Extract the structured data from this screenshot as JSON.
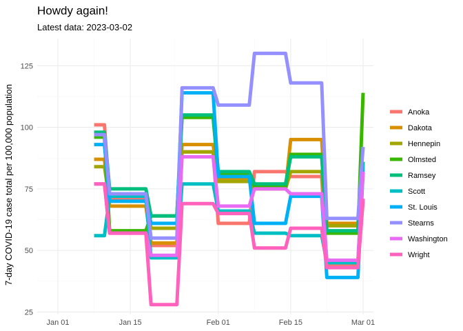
{
  "chart_data": {
    "type": "line",
    "title": "Howdy again!",
    "subtitle": "Latest data: 2023-03-02",
    "xlabel": "",
    "ylabel": "7-day COVID-19 case total per 100,000 population",
    "x_ticks": [
      "2023-01-01",
      "2023-01-15",
      "2023-02-01",
      "2023-02-15",
      "2023-03-01"
    ],
    "x_tick_labels": [
      "Jan 01",
      "Jan 15",
      "Feb 01",
      "Feb 15",
      "Mar 01"
    ],
    "y_ticks": [
      25,
      50,
      75,
      100,
      125
    ],
    "xlim": [
      "2022-12-28",
      "2023-03-03"
    ],
    "ylim": [
      24,
      136
    ],
    "grid": true,
    "legend": "right",
    "series": [
      {
        "name": "Anoka",
        "color": "#F8766D",
        "points": [
          [
            "2023-01-08",
            101
          ],
          [
            "2023-01-10",
            101
          ],
          [
            "2023-01-11",
            71
          ],
          [
            "2023-01-14",
            71
          ],
          [
            "2023-01-18",
            71
          ],
          [
            "2023-01-19",
            52
          ],
          [
            "2023-01-24",
            52
          ],
          [
            "2023-01-25",
            90
          ],
          [
            "2023-01-31",
            90
          ],
          [
            "2023-02-01",
            61
          ],
          [
            "2023-02-07",
            61
          ],
          [
            "2023-02-08",
            82
          ],
          [
            "2023-02-14",
            82
          ],
          [
            "2023-02-15",
            80
          ],
          [
            "2023-02-21",
            80
          ],
          [
            "2023-02-22",
            44
          ],
          [
            "2023-02-28",
            44
          ],
          [
            "2023-03-01",
            70
          ]
        ]
      },
      {
        "name": "Dakota",
        "color": "#D89000",
        "points": [
          [
            "2023-01-08",
            87
          ],
          [
            "2023-01-10",
            87
          ],
          [
            "2023-01-11",
            68
          ],
          [
            "2023-01-14",
            68
          ],
          [
            "2023-01-18",
            68
          ],
          [
            "2023-01-19",
            53
          ],
          [
            "2023-01-24",
            53
          ],
          [
            "2023-01-25",
            93
          ],
          [
            "2023-01-31",
            93
          ],
          [
            "2023-02-01",
            79
          ],
          [
            "2023-02-07",
            79
          ],
          [
            "2023-02-08",
            75
          ],
          [
            "2023-02-14",
            75
          ],
          [
            "2023-02-15",
            95
          ],
          [
            "2023-02-21",
            95
          ],
          [
            "2023-02-22",
            61
          ],
          [
            "2023-02-28",
            61
          ],
          [
            "2023-03-01",
            83
          ]
        ]
      },
      {
        "name": "Hennepin",
        "color": "#A3A500",
        "points": [
          [
            "2023-01-08",
            84
          ],
          [
            "2023-01-10",
            84
          ],
          [
            "2023-01-11",
            70
          ],
          [
            "2023-01-14",
            70
          ],
          [
            "2023-01-18",
            70
          ],
          [
            "2023-01-19",
            59
          ],
          [
            "2023-01-24",
            59
          ],
          [
            "2023-01-25",
            90
          ],
          [
            "2023-01-31",
            90
          ],
          [
            "2023-02-01",
            78
          ],
          [
            "2023-02-07",
            78
          ],
          [
            "2023-02-08",
            75
          ],
          [
            "2023-02-14",
            75
          ],
          [
            "2023-02-15",
            82
          ],
          [
            "2023-02-21",
            82
          ],
          [
            "2023-02-22",
            60
          ],
          [
            "2023-02-28",
            60
          ],
          [
            "2023-03-01",
            84
          ]
        ]
      },
      {
        "name": "Olmsted",
        "color": "#39B600",
        "points": [
          [
            "2023-01-08",
            96
          ],
          [
            "2023-01-10",
            96
          ],
          [
            "2023-01-11",
            58
          ],
          [
            "2023-01-14",
            58
          ],
          [
            "2023-01-18",
            58
          ],
          [
            "2023-01-19",
            64
          ],
          [
            "2023-01-24",
            64
          ],
          [
            "2023-01-25",
            104
          ],
          [
            "2023-01-31",
            104
          ],
          [
            "2023-02-01",
            81
          ],
          [
            "2023-02-07",
            81
          ],
          [
            "2023-02-08",
            76
          ],
          [
            "2023-02-14",
            76
          ],
          [
            "2023-02-15",
            89
          ],
          [
            "2023-02-21",
            89
          ],
          [
            "2023-02-22",
            57
          ],
          [
            "2023-02-28",
            57
          ],
          [
            "2023-03-01",
            114
          ]
        ]
      },
      {
        "name": "Ramsey",
        "color": "#00BF7D",
        "points": [
          [
            "2023-01-08",
            98
          ],
          [
            "2023-01-10",
            98
          ],
          [
            "2023-01-11",
            75
          ],
          [
            "2023-01-14",
            75
          ],
          [
            "2023-01-18",
            75
          ],
          [
            "2023-01-19",
            64
          ],
          [
            "2023-01-24",
            64
          ],
          [
            "2023-01-25",
            105
          ],
          [
            "2023-01-31",
            105
          ],
          [
            "2023-02-01",
            82
          ],
          [
            "2023-02-07",
            82
          ],
          [
            "2023-02-08",
            77
          ],
          [
            "2023-02-14",
            77
          ],
          [
            "2023-02-15",
            88
          ],
          [
            "2023-02-21",
            88
          ],
          [
            "2023-02-22",
            58
          ],
          [
            "2023-02-28",
            58
          ],
          [
            "2023-03-01",
            86
          ]
        ]
      },
      {
        "name": "Scott",
        "color": "#00BFC4",
        "points": [
          [
            "2023-01-08",
            56
          ],
          [
            "2023-01-10",
            56
          ],
          [
            "2023-01-11",
            72
          ],
          [
            "2023-01-14",
            72
          ],
          [
            "2023-01-18",
            72
          ],
          [
            "2023-01-19",
            47
          ],
          [
            "2023-01-24",
            47
          ],
          [
            "2023-01-25",
            77
          ],
          [
            "2023-01-31",
            77
          ],
          [
            "2023-02-01",
            66
          ],
          [
            "2023-02-07",
            66
          ],
          [
            "2023-02-08",
            57
          ],
          [
            "2023-02-14",
            57
          ],
          [
            "2023-02-15",
            56
          ],
          [
            "2023-02-21",
            56
          ],
          [
            "2023-02-22",
            45
          ],
          [
            "2023-02-28",
            45
          ],
          [
            "2023-03-01",
            85
          ]
        ]
      },
      {
        "name": "St. Louis",
        "color": "#00B0F6",
        "points": [
          [
            "2023-01-08",
            93
          ],
          [
            "2023-01-10",
            93
          ],
          [
            "2023-01-11",
            70
          ],
          [
            "2023-01-14",
            70
          ],
          [
            "2023-01-18",
            70
          ],
          [
            "2023-01-19",
            61
          ],
          [
            "2023-01-24",
            61
          ],
          [
            "2023-01-25",
            114
          ],
          [
            "2023-01-31",
            114
          ],
          [
            "2023-02-01",
            80
          ],
          [
            "2023-02-07",
            80
          ],
          [
            "2023-02-08",
            61
          ],
          [
            "2023-02-14",
            61
          ],
          [
            "2023-02-15",
            72
          ],
          [
            "2023-02-21",
            72
          ],
          [
            "2023-02-22",
            39
          ],
          [
            "2023-02-28",
            39
          ],
          [
            "2023-03-01",
            82
          ]
        ]
      },
      {
        "name": "Stearns",
        "color": "#9590FF",
        "points": [
          [
            "2023-01-08",
            97
          ],
          [
            "2023-01-10",
            97
          ],
          [
            "2023-01-11",
            73
          ],
          [
            "2023-01-14",
            73
          ],
          [
            "2023-01-18",
            73
          ],
          [
            "2023-01-19",
            55
          ],
          [
            "2023-01-24",
            55
          ],
          [
            "2023-01-25",
            116
          ],
          [
            "2023-01-31",
            116
          ],
          [
            "2023-02-01",
            109
          ],
          [
            "2023-02-07",
            109
          ],
          [
            "2023-02-08",
            130
          ],
          [
            "2023-02-14",
            130
          ],
          [
            "2023-02-15",
            118
          ],
          [
            "2023-02-21",
            118
          ],
          [
            "2023-02-22",
            63
          ],
          [
            "2023-02-28",
            63
          ],
          [
            "2023-03-01",
            92
          ]
        ]
      },
      {
        "name": "Washington",
        "color": "#E76BF3",
        "points": [
          [
            "2023-01-08",
            77
          ],
          [
            "2023-01-10",
            77
          ],
          [
            "2023-01-11",
            57
          ],
          [
            "2023-01-14",
            57
          ],
          [
            "2023-01-18",
            57
          ],
          [
            "2023-01-19",
            48
          ],
          [
            "2023-01-24",
            48
          ],
          [
            "2023-01-25",
            88
          ],
          [
            "2023-01-31",
            88
          ],
          [
            "2023-02-01",
            68
          ],
          [
            "2023-02-07",
            68
          ],
          [
            "2023-02-08",
            75
          ],
          [
            "2023-02-14",
            75
          ],
          [
            "2023-02-15",
            73
          ],
          [
            "2023-02-21",
            73
          ],
          [
            "2023-02-22",
            46
          ],
          [
            "2023-02-28",
            46
          ],
          [
            "2023-03-01",
            82
          ]
        ]
      },
      {
        "name": "Wright",
        "color": "#FF62BC",
        "points": [
          [
            "2023-01-08",
            77
          ],
          [
            "2023-01-10",
            77
          ],
          [
            "2023-01-11",
            57
          ],
          [
            "2023-01-14",
            57
          ],
          [
            "2023-01-18",
            57
          ],
          [
            "2023-01-19",
            28
          ],
          [
            "2023-01-24",
            28
          ],
          [
            "2023-01-25",
            69
          ],
          [
            "2023-01-31",
            69
          ],
          [
            "2023-02-01",
            65
          ],
          [
            "2023-02-07",
            65
          ],
          [
            "2023-02-08",
            51
          ],
          [
            "2023-02-14",
            51
          ],
          [
            "2023-02-15",
            59
          ],
          [
            "2023-02-21",
            59
          ],
          [
            "2023-02-22",
            43
          ],
          [
            "2023-02-28",
            43
          ],
          [
            "2023-03-01",
            71
          ]
        ]
      }
    ]
  }
}
